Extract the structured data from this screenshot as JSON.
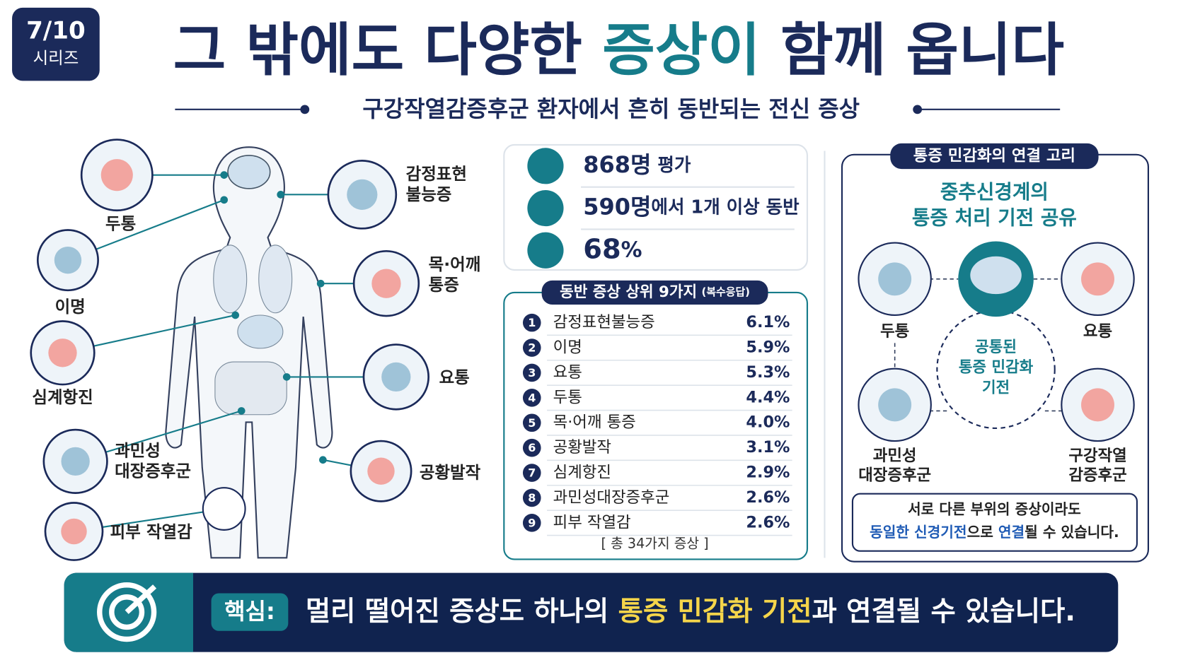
{
  "badge": {
    "number": "7/10",
    "label": "시리즈"
  },
  "title": {
    "parts": [
      "그 밖에도 다양한 ",
      "증상이",
      " 함께 옵니다"
    ]
  },
  "subtitle": "구강작열감증후군 환자에서 흔히 동반되는 전신 증상",
  "body_labels": [
    {
      "label": [
        "두통"
      ]
    },
    {
      "label": [
        "이명"
      ]
    },
    {
      "label": [
        "심계항진"
      ]
    },
    {
      "label": [
        "과민성",
        "대장증후군"
      ]
    },
    {
      "label": [
        "피부 작열감"
      ]
    },
    {
      "label": [
        "감정표현",
        "불능증"
      ]
    },
    {
      "label": [
        "목·어깨",
        "통증"
      ]
    },
    {
      "label": [
        "요통"
      ]
    },
    {
      "label": [
        "공황발작"
      ]
    }
  ],
  "stats": [
    {
      "value": "868명",
      "text": " 평가"
    },
    {
      "value": "590명",
      "text": "에서 1개 이상 동반"
    },
    {
      "value": "68",
      "text": "%"
    }
  ],
  "table": {
    "title": "동반 증상 상위 9가지",
    "note": "(복수응답)",
    "rows": [
      [
        "1",
        "감정표현불능증",
        "6.1%"
      ],
      [
        "2",
        "이명",
        "5.9%"
      ],
      [
        "3",
        "요통",
        "5.3%"
      ],
      [
        "4",
        "두통",
        "4.4%"
      ],
      [
        "5",
        "목·어깨 통증",
        "4.0%"
      ],
      [
        "6",
        "공황발작",
        "3.1%"
      ],
      [
        "7",
        "심계항진",
        "2.9%"
      ],
      [
        "8",
        "과민성대장증후군",
        "2.6%"
      ],
      [
        "9",
        "피부 작열감",
        "2.6%"
      ]
    ],
    "footer": "[ 총 34가지 증상 ]"
  },
  "mechanism": {
    "tag": "통증 민감화의 연결 고리",
    "heading": [
      "중추신경계의",
      "통증 처리 기전 공유"
    ],
    "center": [
      "공통된",
      "통증 민감화",
      "기전"
    ],
    "nodes": [
      {
        "label": [
          "두통"
        ]
      },
      {
        "label": [
          "요통"
        ]
      },
      {
        "label": [
          "과민성",
          "대장증후군"
        ]
      },
      {
        "label": [
          "구강작열",
          "감증후군"
        ]
      }
    ],
    "note_line1": "서로 다른 부위의 증상이라도",
    "note_line2": [
      "동일한 신경기전",
      "으로 ",
      "연결",
      "될 수 있습니다."
    ]
  },
  "key": {
    "label": "핵심:",
    "parts": [
      "멀리 떨어진 증상도 하나의 ",
      "통증 민감화 기전",
      "과 연결될 수 있습니다."
    ]
  }
}
